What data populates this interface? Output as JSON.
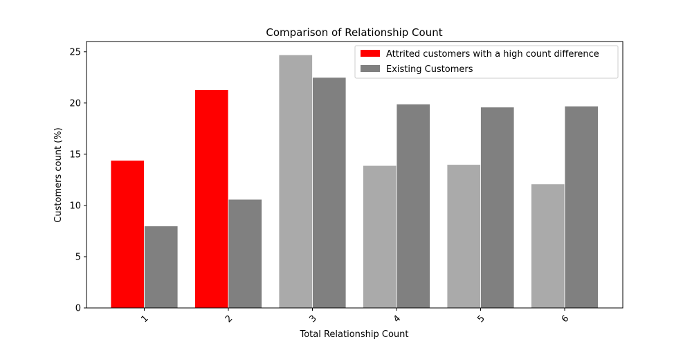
{
  "chart_data": {
    "type": "bar",
    "title": "Comparison of Relationship Count",
    "xlabel": "Total Relationship Count",
    "ylabel": "Customers count (%)",
    "categories": [
      "1",
      "2",
      "3",
      "4",
      "5",
      "6"
    ],
    "ylim": [
      0,
      26
    ],
    "yticks": [
      0,
      5,
      10,
      15,
      20,
      25
    ],
    "legend_position": "top-right",
    "series": [
      {
        "name": "Attrited customers with a high count difference",
        "values": [
          14.4,
          21.3,
          24.7,
          13.9,
          14.0,
          12.1
        ],
        "color": "#ff0000",
        "point_colors": [
          "#ff0000",
          "#ff0000",
          "#aaaaaa",
          "#aaaaaa",
          "#aaaaaa",
          "#aaaaaa"
        ]
      },
      {
        "name": "Existing Customers",
        "values": [
          8.0,
          10.6,
          22.5,
          19.9,
          19.6,
          19.7
        ],
        "color": "#808080",
        "point_colors": [
          "#808080",
          "#808080",
          "#808080",
          "#808080",
          "#808080",
          "#808080"
        ]
      }
    ]
  }
}
